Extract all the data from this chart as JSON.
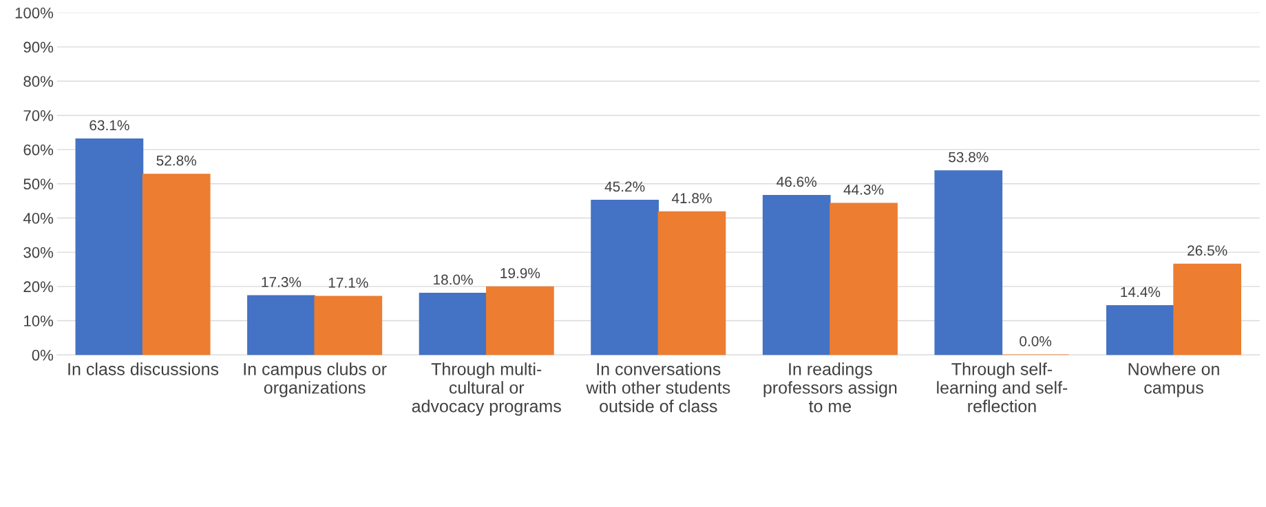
{
  "chart_data": {
    "type": "bar",
    "categories": [
      "In class discussions",
      "In campus clubs or\norganizations",
      "Through multi-\ncultural or\nadvocacy programs",
      "In conversations\nwith other students\noutside of class",
      "In readings\nprofessors assign\nto me",
      "Through self-\nlearning and self-\nreflection",
      "Nowhere on\ncampus"
    ],
    "series": [
      {
        "color": "#4472c4",
        "values": [
          63.1,
          17.3,
          18.0,
          45.2,
          46.6,
          53.8,
          14.4
        ],
        "value_labels": [
          "63.1%",
          "17.3%",
          "18.0%",
          "45.2%",
          "46.6%",
          "53.8%",
          "14.4%"
        ]
      },
      {
        "color": "#ed7d31",
        "values": [
          52.8,
          17.1,
          19.9,
          41.8,
          44.3,
          0.0,
          26.5
        ],
        "value_labels": [
          "52.8%",
          "17.1%",
          "19.9%",
          "41.8%",
          "44.3%",
          "0.0%",
          "26.5%"
        ]
      }
    ],
    "ylim": [
      0,
      100
    ],
    "yticks": [
      {
        "value": 0,
        "label": "0%"
      },
      {
        "value": 10,
        "label": "10%"
      },
      {
        "value": 20,
        "label": "20%"
      },
      {
        "value": 30,
        "label": "30%"
      },
      {
        "value": 40,
        "label": "40%"
      },
      {
        "value": 50,
        "label": "50%"
      },
      {
        "value": 60,
        "label": "60%"
      },
      {
        "value": 70,
        "label": "70%"
      },
      {
        "value": 80,
        "label": "80%"
      },
      {
        "value": 90,
        "label": "90%"
      },
      {
        "value": 100,
        "label": "100%"
      }
    ],
    "grid": "y"
  }
}
